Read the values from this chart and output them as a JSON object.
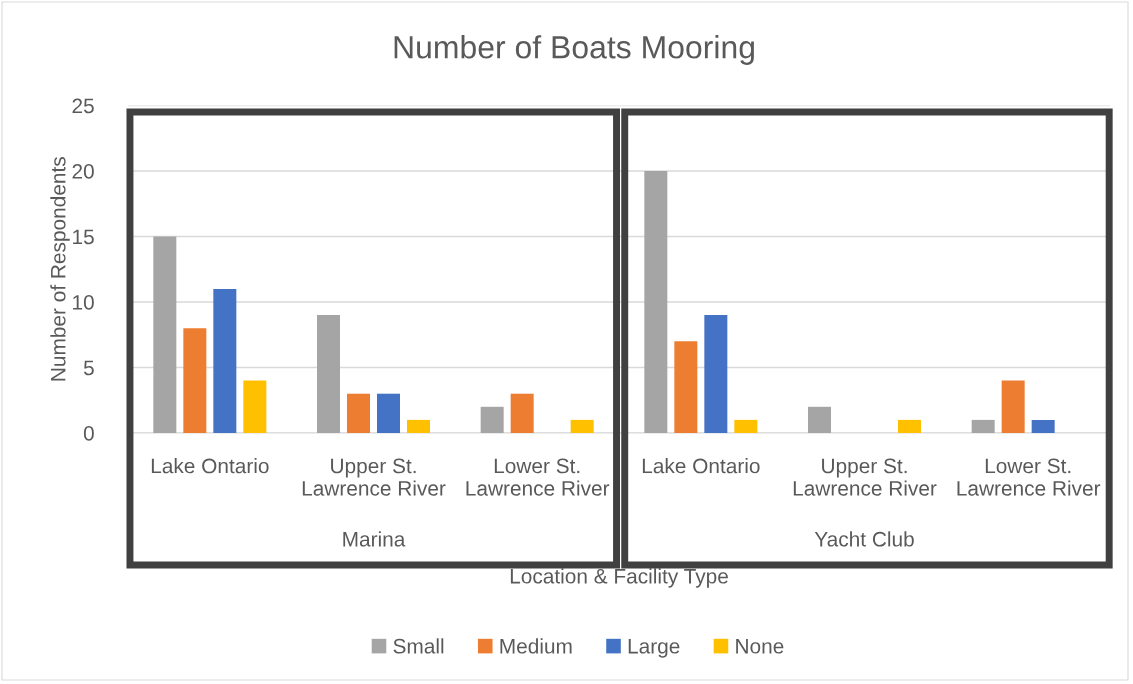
{
  "chart_data": {
    "type": "bar",
    "title": "Number of Boats Mooring",
    "xlabel": "Location & Facility Type",
    "ylabel": "Number of Respondents",
    "categories": [
      "Lake Ontario",
      "Upper St.\nLawrence River",
      "Lower St.\nLawrence River",
      "Lake Ontario",
      "Upper St.\nLawrence River",
      "Lower St.\nLawrence River"
    ],
    "series": [
      {
        "name": "Small",
        "color": "#a5a5a5",
        "values": [
          15,
          9,
          2,
          20,
          2,
          1
        ]
      },
      {
        "name": "Medium",
        "color": "#ed7d31",
        "values": [
          8,
          3,
          3,
          7,
          null,
          4
        ]
      },
      {
        "name": "Large",
        "color": "#4472c4",
        "values": [
          11,
          3,
          null,
          9,
          null,
          1
        ]
      },
      {
        "name": "None",
        "color": "#ffc000",
        "values": [
          4,
          1,
          1,
          1,
          1,
          null
        ]
      }
    ],
    "ylim": [
      0,
      25
    ],
    "yticks": [
      0,
      5,
      10,
      15,
      20,
      25
    ],
    "grid": "y",
    "legend": "bottom",
    "annotations": [
      "Marina",
      "Yacht Club"
    ]
  }
}
